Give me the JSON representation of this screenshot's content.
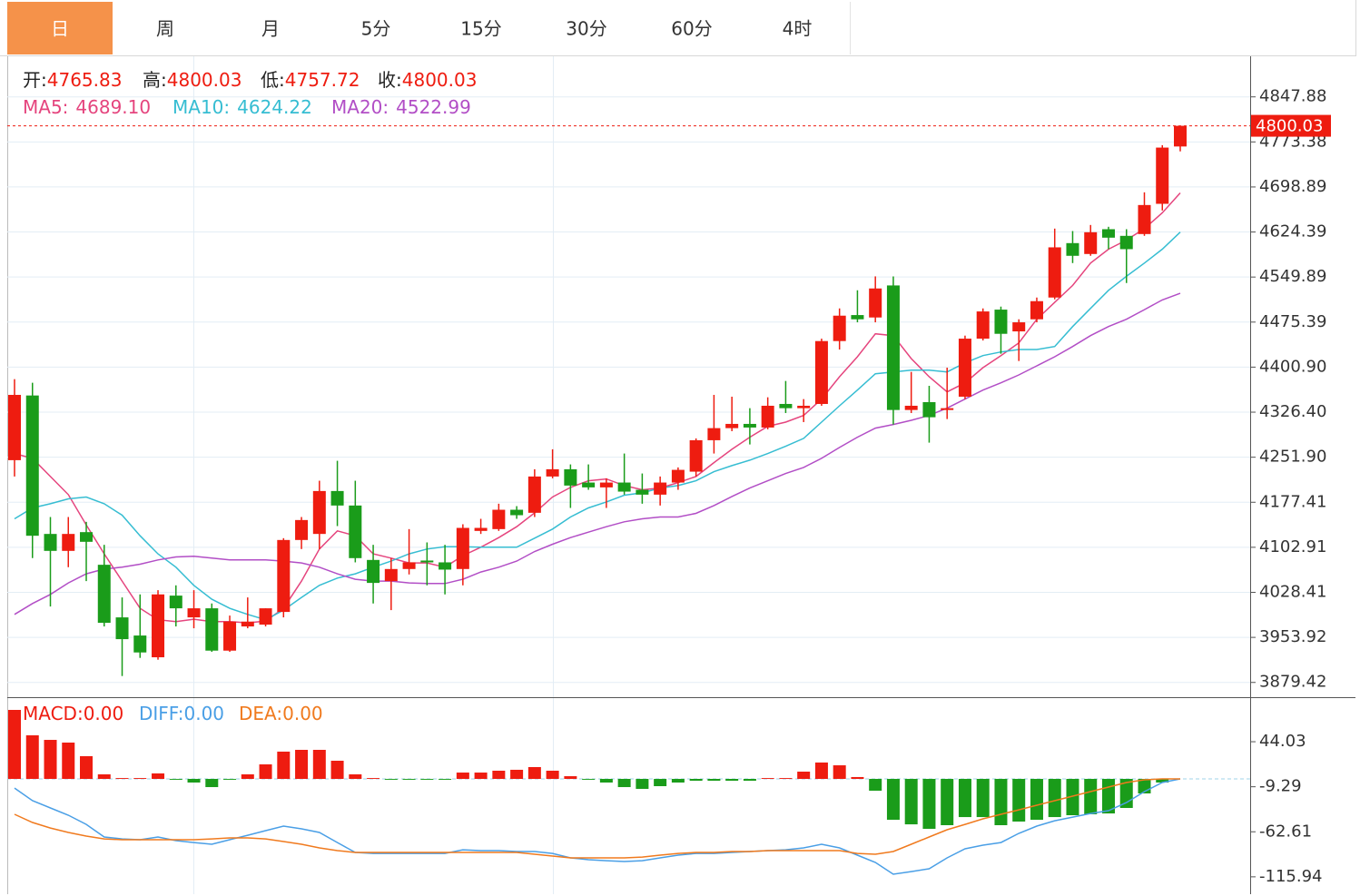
{
  "tabs": [
    "日",
    "周",
    "月",
    "5分",
    "15分",
    "30分",
    "60分",
    "4时"
  ],
  "active_tab": 0,
  "active_tab_color": "#f5924a",
  "chart_data": [
    {
      "type": "candlestick",
      "up_color": "#ee1c10",
      "down_color": "#1a9c1a",
      "grid": true,
      "ohlc_labels": [
        {
          "name": "开:",
          "value": "4765.83"
        },
        {
          "name": "高:",
          "value": "4800.03"
        },
        {
          "name": "低:",
          "value": "4757.72"
        },
        {
          "name": "收:",
          "value": "4800.03"
        }
      ],
      "open": [
        4247,
        4354,
        4125,
        4097,
        4128,
        4074,
        3987,
        3957,
        3921,
        4023,
        3987,
        4002,
        3932,
        3972,
        3975,
        3996,
        4115,
        4125,
        4196,
        4172,
        4082,
        4047,
        4067,
        4081,
        4078,
        4067,
        4130,
        4133,
        4165,
        4160,
        4220,
        4232,
        4210,
        4202,
        4210,
        4198,
        4190,
        4210,
        4228,
        4280,
        4300,
        4307,
        4301,
        4340,
        4333,
        4340,
        4444,
        4487,
        4483,
        4536,
        4330,
        4343,
        4330,
        4352,
        4448,
        4496,
        4460,
        4480,
        4516,
        4606,
        4588,
        4629,
        4618,
        4621,
        4671,
        4765.83
      ],
      "high": [
        4381,
        4375,
        4153,
        4153,
        4145,
        4107,
        4020,
        4025,
        4032,
        4040,
        4032,
        4010,
        3990,
        4020,
        4002,
        4118,
        4153,
        4213,
        4246,
        4213,
        4107,
        4085,
        4133,
        4111,
        4107,
        4141,
        4150,
        4175,
        4171,
        4232,
        4265,
        4240,
        4240,
        4217,
        4258,
        4225,
        4220,
        4235,
        4283,
        4355,
        4352,
        4333,
        4351,
        4378,
        4348,
        4448,
        4498,
        4528,
        4551,
        4551,
        4393,
        4370,
        4400,
        4453,
        4498,
        4501,
        4480,
        4516,
        4630,
        4626,
        4636,
        4633,
        4629,
        4690,
        4768,
        4800.03
      ],
      "low": [
        4220,
        4085,
        4005,
        4070,
        4047,
        3972,
        3890,
        3920,
        3917,
        3972,
        3969,
        3930,
        3930,
        3969,
        3972,
        3987,
        4100,
        4100,
        4138,
        4078,
        4010,
        3999,
        4058,
        4040,
        4025,
        4040,
        4125,
        4130,
        4150,
        4153,
        4217,
        4168,
        4198,
        4168,
        4190,
        4175,
        4172,
        4198,
        4220,
        4258,
        4295,
        4273,
        4298,
        4325,
        4310,
        4337,
        4430,
        4475,
        4475,
        4306,
        4325,
        4276,
        4315,
        4348,
        4445,
        4423,
        4411,
        4475,
        4513,
        4573,
        4585,
        4596,
        4540,
        4618,
        4660,
        4757.72
      ],
      "close": [
        4355,
        4122,
        4097,
        4125,
        4112,
        3978,
        3951,
        3929,
        4025,
        4002,
        4002,
        3932,
        3980,
        3980,
        4002,
        4115,
        4148,
        4196,
        4172,
        4085,
        4044,
        4067,
        4078,
        4078,
        4066,
        4135,
        4135,
        4165,
        4156,
        4220,
        4232,
        4205,
        4202,
        4210,
        4195,
        4190,
        4210,
        4231,
        4280,
        4300,
        4307,
        4301,
        4337,
        4333,
        4337,
        4444,
        4486,
        4480,
        4531,
        4330,
        4337,
        4318,
        4333,
        4448,
        4493,
        4456,
        4475,
        4510,
        4599,
        4585,
        4624,
        4615,
        4596,
        4669,
        4764,
        4800.03
      ],
      "series": [
        {
          "name": "MA5:",
          "legend_value": "4689.10",
          "color": "#e5457e",
          "values": [
            4258,
            4250,
            4220,
            4190,
            4140,
            4092,
            4047,
            4002,
            3983,
            3980,
            3984,
            3980,
            3980,
            3978,
            3981,
            4002,
            4047,
            4100,
            4130,
            4122,
            4092,
            4085,
            4077,
            4077,
            4070,
            4089,
            4103,
            4119,
            4137,
            4160,
            4186,
            4202,
            4213,
            4216,
            4205,
            4198,
            4201,
            4210,
            4220,
            4243,
            4265,
            4285,
            4303,
            4310,
            4321,
            4348,
            4385,
            4418,
            4456,
            4453,
            4415,
            4385,
            4360,
            4375,
            4400,
            4420,
            4441,
            4480,
            4508,
            4536,
            4573,
            4596,
            4611,
            4630,
            4656,
            4689.1
          ]
        },
        {
          "name": "MA10:",
          "legend_value": "4624.22",
          "color": "#36bdd2",
          "values": [
            4150,
            4168,
            4175,
            4183,
            4186,
            4175,
            4156,
            4122,
            4092,
            4070,
            4040,
            4017,
            4002,
            3992,
            3983,
            3999,
            4020,
            4040,
            4052,
            4059,
            4070,
            4080,
            4092,
            4100,
            4104,
            4104,
            4103,
            4103,
            4103,
            4118,
            4133,
            4153,
            4168,
            4178,
            4189,
            4193,
            4201,
            4205,
            4213,
            4228,
            4238,
            4247,
            4258,
            4270,
            4283,
            4310,
            4337,
            4363,
            4390,
            4393,
            4396,
            4396,
            4393,
            4408,
            4420,
            4426,
            4430,
            4430,
            4435,
            4468,
            4498,
            4528,
            4551,
            4573,
            4596,
            4624.22
          ]
        },
        {
          "name": "MA20:",
          "legend_value": "4522.99",
          "color": "#b24ec6",
          "values": [
            3992,
            4010,
            4025,
            4044,
            4059,
            4067,
            4070,
            4075,
            4082,
            4087,
            4088,
            4085,
            4082,
            4082,
            4082,
            4080,
            4077,
            4070,
            4059,
            4050,
            4047,
            4047,
            4044,
            4043,
            4043,
            4050,
            4062,
            4070,
            4080,
            4096,
            4108,
            4119,
            4128,
            4137,
            4145,
            4150,
            4153,
            4153,
            4159,
            4172,
            4187,
            4201,
            4213,
            4225,
            4235,
            4250,
            4268,
            4285,
            4300,
            4306,
            4313,
            4321,
            4333,
            4348,
            4363,
            4375,
            4388,
            4403,
            4418,
            4435,
            4453,
            4468,
            4480,
            4496,
            4512,
            4522.99
          ]
        }
      ],
      "ylim": [
        3855,
        4915
      ],
      "yticks": [
        4847.88,
        4773.38,
        4698.89,
        4624.39,
        4549.89,
        4475.39,
        {
          "value": 4400.9,
          "label": "4400.90"
        },
        {
          "value": 4326.4,
          "label": "4326.40"
        },
        {
          "value": 4251.9,
          "label": "4251.90"
        },
        4177.41,
        4102.91,
        4028.41,
        3953.92,
        3879.42
      ]
    },
    {
      "type": "macd",
      "up_color": "#ee1c10",
      "down_color": "#1a9c1a",
      "series": [
        {
          "name": "MACD:",
          "legend_value": "0.00",
          "color": "#ee1c10",
          "kind": "bar",
          "values": [
            81.7,
            51.6,
            46.2,
            43,
            26.9,
            5.4,
            1,
            1,
            6.5,
            -1,
            -4.3,
            -9.7,
            -1,
            5.4,
            17.2,
            32.3,
            34.4,
            34.4,
            21.5,
            5.4,
            1,
            -1,
            -1,
            -1,
            -1,
            7.5,
            7.5,
            9.7,
            10.8,
            14,
            9.7,
            3.2,
            -1,
            -4.3,
            -9.7,
            -11.8,
            -8.6,
            -4.3,
            -2.2,
            -2.2,
            -2.2,
            -2.2,
            1,
            1,
            8.6,
            19.4,
            16.1,
            2.2,
            -14,
            -48.4,
            -53.8,
            -59.1,
            -54.8,
            -45.2,
            -45.2,
            -54.8,
            -50.5,
            -48.4,
            -45.2,
            -43,
            -41.9,
            -40.9,
            -34.4,
            -17.2,
            -4.3,
            0
          ]
        },
        {
          "name": "DIFF:",
          "legend_value": "0.00",
          "color": "#4a9fe6",
          "kind": "line",
          "values": [
            -10.8,
            -25.8,
            -34.4,
            -43,
            -53.8,
            -68.8,
            -71,
            -72,
            -68.8,
            -73.1,
            -75.3,
            -77.4,
            -72,
            -66.7,
            -61.3,
            -55.9,
            -59.1,
            -63.4,
            -75.3,
            -87.1,
            -88.2,
            -88.2,
            -88.2,
            -88.2,
            -88.2,
            -83.9,
            -84.9,
            -84.9,
            -86,
            -86,
            -88.2,
            -93.5,
            -95.7,
            -96.8,
            -97.8,
            -96.8,
            -93.5,
            -90.3,
            -88.2,
            -88.2,
            -87.1,
            -86,
            -84.9,
            -83.9,
            -81.7,
            -77.4,
            -81.7,
            -90.3,
            -98.9,
            -112.9,
            -109.7,
            -106.4,
            -93.5,
            -82.8,
            -78.5,
            -75.3,
            -64.5,
            -55.9,
            -49.5,
            -45.2,
            -40.9,
            -37.6,
            -28,
            -15,
            -4.3,
            0
          ]
        },
        {
          "name": "DEA:",
          "legend_value": "0.00",
          "color": "#f07a1e",
          "kind": "line",
          "values": [
            -41.9,
            -51.6,
            -58.1,
            -63.4,
            -67.7,
            -71,
            -72,
            -72,
            -72,
            -72,
            -72,
            -71,
            -69.9,
            -69.9,
            -71,
            -74.2,
            -77.4,
            -81.7,
            -84.9,
            -87.1,
            -87.1,
            -87.1,
            -87.1,
            -87.1,
            -87.1,
            -87.1,
            -87.1,
            -87.1,
            -87.1,
            -89.2,
            -91.4,
            -93.5,
            -93.5,
            -93.5,
            -93.5,
            -92.5,
            -90.3,
            -88.2,
            -87.1,
            -87.1,
            -86,
            -86,
            -84.9,
            -84.9,
            -84.9,
            -84.9,
            -84.9,
            -88.2,
            -89.2,
            -86,
            -77.4,
            -68.8,
            -60.2,
            -53.8,
            -47.3,
            -41.9,
            -36.6,
            -31.2,
            -25.8,
            -20.4,
            -15,
            -9.7,
            -4.3,
            -1.1,
            0,
            0
          ]
        }
      ],
      "ylim": [
        -136.5,
        94.6
      ],
      "yticks": [
        44.03,
        -9.29,
        -62.61,
        -115.94
      ]
    }
  ]
}
